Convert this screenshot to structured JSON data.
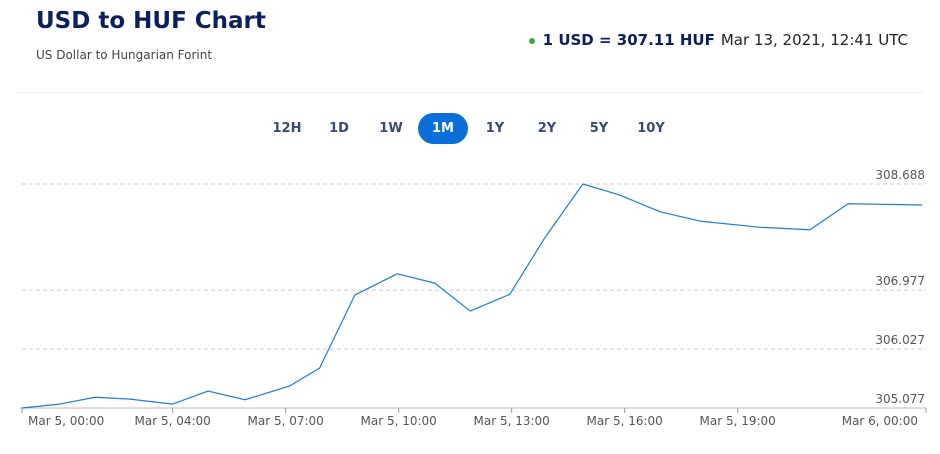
{
  "header": {
    "title": "USD to HUF Chart",
    "subtitle": "US Dollar to Hungarian Forint",
    "rate": "1 USD = 307.11 HUF",
    "timestamp": "Mar 13, 2021, 12:41 UTC"
  },
  "range_buttons": {
    "options": [
      "12H",
      "1D",
      "1W",
      "1M",
      "1Y",
      "2Y",
      "5Y",
      "10Y"
    ],
    "selected": "1M"
  },
  "chart_data": {
    "type": "line",
    "x": [
      0,
      1.0,
      1.94,
      2.87,
      4.0,
      4.94,
      5.92,
      7.1,
      7.9,
      8.84,
      9.96,
      10.96,
      11.9,
      12.95,
      13.88,
      14.89,
      15.87,
      16.94,
      18.0,
      19.6,
      20.92,
      21.93,
      23.9
    ],
    "series": [
      {
        "name": "USD/HUF",
        "color": "#1a7fd4",
        "values": [
          305.077,
          305.14,
          305.25,
          305.22,
          305.14,
          305.35,
          305.21,
          305.43,
          305.72,
          306.9,
          307.24,
          307.09,
          306.64,
          306.91,
          307.82,
          308.688,
          308.51,
          308.24,
          308.09,
          307.99,
          307.95,
          308.37,
          308.35
        ]
      }
    ],
    "xlim": [
      0,
      24
    ],
    "xticks": [
      {
        "value": 0,
        "label": "Mar 5, 00:00"
      },
      {
        "value": 4,
        "label": "Mar 5, 04:00"
      },
      {
        "value": 7,
        "label": "Mar 5, 07:00"
      },
      {
        "value": 10,
        "label": "Mar 5, 10:00"
      },
      {
        "value": 13,
        "label": "Mar 5, 13:00"
      },
      {
        "value": 16,
        "label": "Mar 5, 16:00"
      },
      {
        "value": 19,
        "label": "Mar 5, 19:00"
      },
      {
        "value": 24,
        "label": "Mar 6, 00:00"
      }
    ],
    "ylim": [
      305.077,
      308.688
    ],
    "yticks": [
      305.077,
      306.027,
      306.977,
      308.688
    ],
    "grid": true
  }
}
